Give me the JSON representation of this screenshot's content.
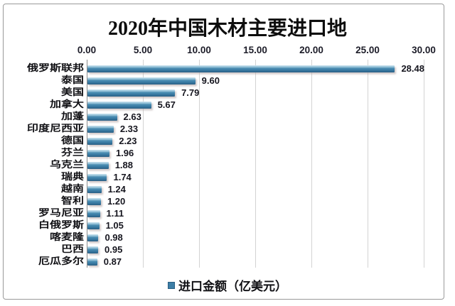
{
  "chart_data": {
    "type": "bar",
    "orientation": "horizontal",
    "title": "2020年中国木材主要进口地",
    "categories": [
      "俄罗斯联邦",
      "泰国",
      "美国",
      "加拿大",
      "加蓬",
      "印度尼西亚",
      "德国",
      "芬兰",
      "乌克兰",
      "瑞典",
      "越南",
      "智利",
      "罗马尼亚",
      "白俄罗斯",
      "喀麦隆",
      "巴西",
      "厄瓜多尔"
    ],
    "values": [
      28.48,
      9.6,
      7.79,
      5.67,
      2.63,
      2.33,
      2.23,
      1.96,
      1.88,
      1.74,
      1.24,
      1.2,
      1.11,
      1.05,
      0.98,
      0.95,
      0.87
    ],
    "value_labels": [
      "28.48",
      "9.60",
      "7.79",
      "5.67",
      "2.63",
      "2.33",
      "2.23",
      "1.96",
      "1.88",
      "1.74",
      "1.24",
      "1.20",
      "1.11",
      "1.05",
      "0.98",
      "0.95",
      "0.87"
    ],
    "x_ticks": [
      "0.00",
      "5.00",
      "10.00",
      "15.00",
      "20.00",
      "25.00",
      "30.00"
    ],
    "xlim": [
      0,
      30
    ],
    "xlabel": "",
    "ylabel": "",
    "series_name": "进口金额（亿美元）",
    "legend_label": "进口金额（亿美元）",
    "legend_position": "bottom",
    "grid": "vertical-only",
    "data_labels_shown": true
  },
  "colors": {
    "bar_main": "#3D7EA6",
    "bar_highlight": "#A5CDE0",
    "bar_dark": "#2A5F84",
    "gridline": "#D3D3D3",
    "axis_line": "#8C8C8C",
    "frame_border": "#9A9A9A",
    "text": "#101014"
  }
}
